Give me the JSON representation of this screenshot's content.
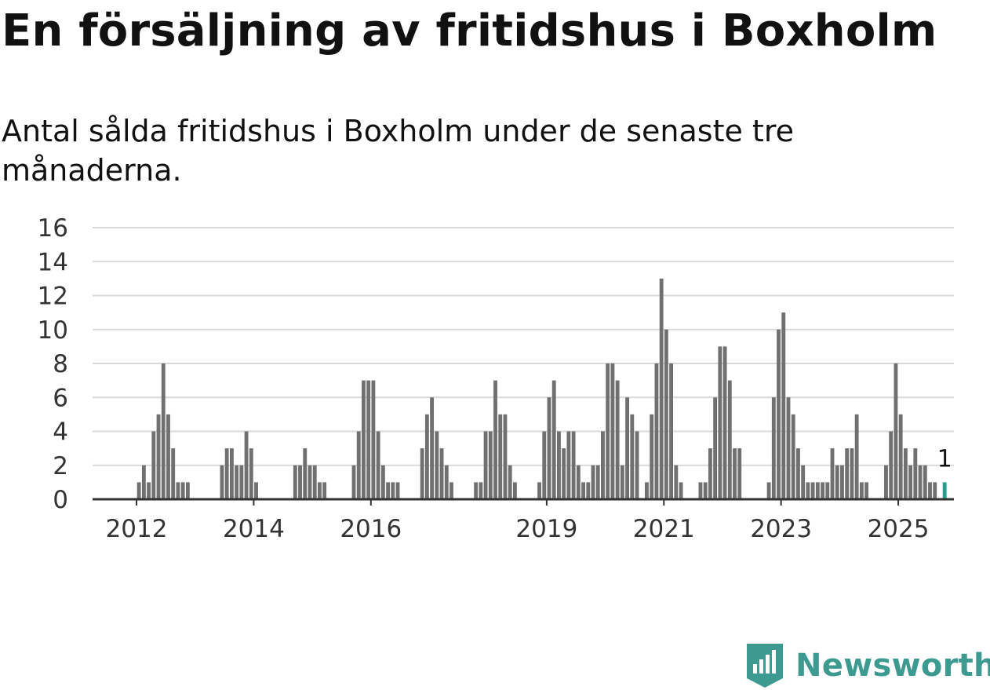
{
  "title": "En försäljning av fritidshus i Boxholm",
  "subtitle": "Antal sålda fritidshus i Boxholm under de senaste tre månaderna.",
  "brand": {
    "name": "Newsworthy",
    "icon": "newsworthy-logo-icon",
    "color": "#3d9a91"
  },
  "colors": {
    "bar": "#707070",
    "highlight": "#2a9d8f",
    "grid": "#d9d9d9",
    "axis": "#333333"
  },
  "chart_data": {
    "type": "bar",
    "title": "En försäljning av fritidshus i Boxholm",
    "subtitle": "Antal sålda fritidshus i Boxholm under de senaste tre månaderna.",
    "xlabel": "",
    "ylabel": "",
    "ylim": [
      0,
      16
    ],
    "y_ticks": [
      0,
      2,
      4,
      6,
      8,
      10,
      12,
      14,
      16
    ],
    "x_tick_labels": [
      "2012",
      "2014",
      "2016",
      "2019",
      "2021",
      "2023",
      "2025"
    ],
    "x_tick_positions": [
      2012,
      2014,
      2016,
      2019,
      2021,
      2023,
      2025
    ],
    "x_range": [
      2011.25,
      2025.95
    ],
    "grid": true,
    "x_step_months": 1,
    "start": 2011.25,
    "highlight_last": true,
    "highlight_label": "1",
    "values": [
      0,
      0,
      0,
      0,
      0,
      0,
      0,
      0,
      0,
      1,
      2,
      1,
      4,
      5,
      8,
      5,
      3,
      1,
      1,
      1,
      0,
      0,
      0,
      0,
      0,
      0,
      2,
      3,
      3,
      2,
      2,
      4,
      3,
      1,
      0,
      0,
      0,
      0,
      0,
      0,
      0,
      2,
      2,
      3,
      2,
      2,
      1,
      1,
      0,
      0,
      0,
      0,
      0,
      2,
      4,
      7,
      7,
      7,
      4,
      2,
      1,
      1,
      1,
      0,
      0,
      0,
      0,
      3,
      5,
      6,
      4,
      3,
      2,
      1,
      0,
      0,
      0,
      0,
      1,
      1,
      4,
      4,
      7,
      5,
      5,
      2,
      1,
      0,
      0,
      0,
      0,
      1,
      4,
      6,
      7,
      4,
      3,
      4,
      4,
      2,
      1,
      1,
      2,
      2,
      4,
      8,
      8,
      7,
      2,
      6,
      5,
      4,
      0,
      1,
      5,
      8,
      13,
      10,
      8,
      2,
      1,
      0,
      0,
      0,
      1,
      1,
      3,
      6,
      9,
      9,
      7,
      3,
      3,
      0,
      0,
      0,
      0,
      0,
      1,
      6,
      10,
      11,
      6,
      5,
      3,
      2,
      1,
      1,
      1,
      1,
      1,
      3,
      2,
      2,
      3,
      3,
      5,
      1,
      1,
      0,
      0,
      0,
      2,
      4,
      8,
      5,
      3,
      2,
      3,
      2,
      2,
      1,
      1,
      0,
      1
    ]
  }
}
